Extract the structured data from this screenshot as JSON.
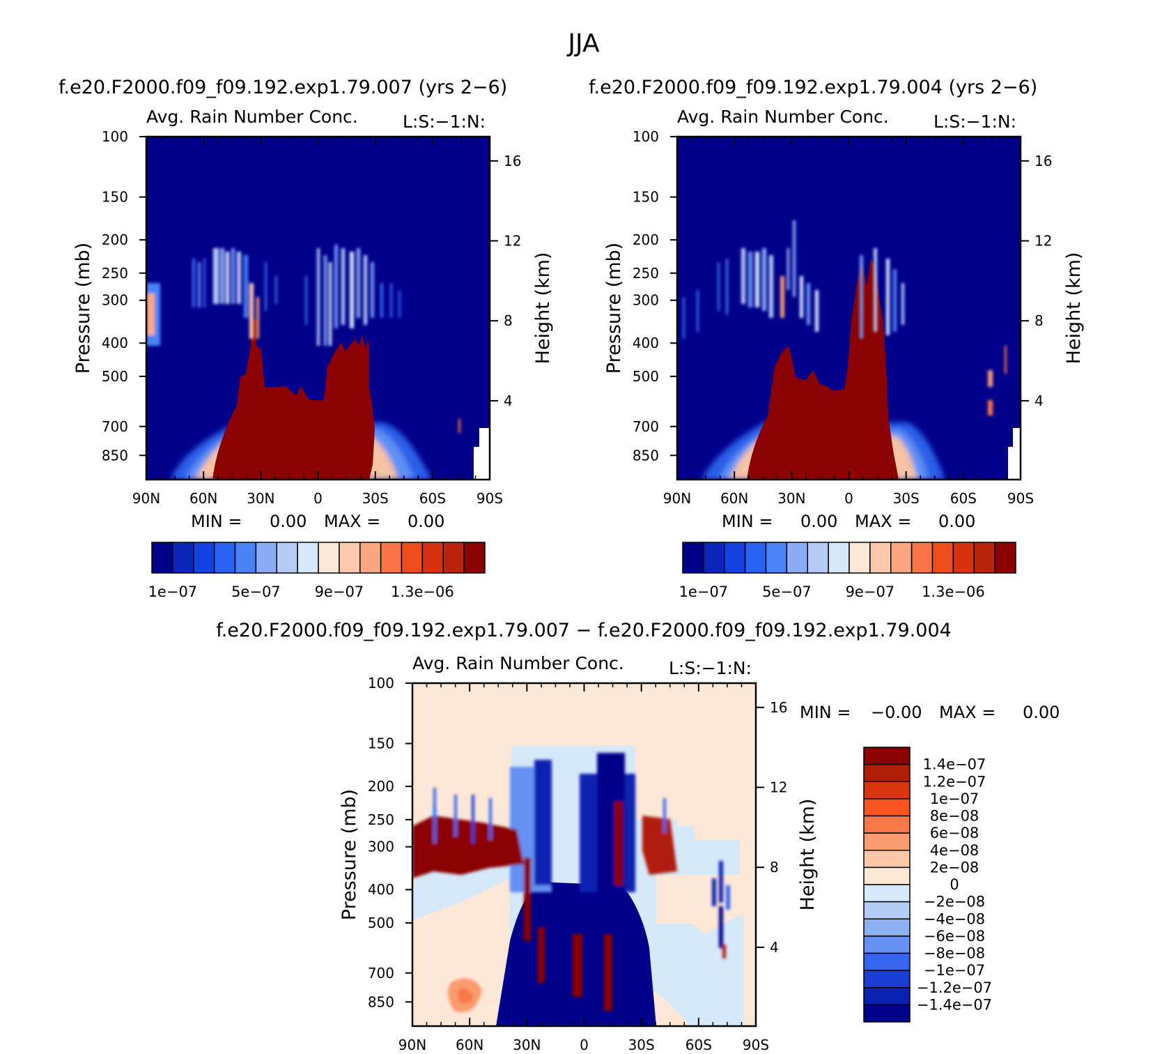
{
  "page": {
    "season": "JJA",
    "case_a_title": "f.e20.F2000.f09_f09.192.exp1.79.007 (yrs 2−6)",
    "case_b_title": "f.e20.F2000.f09_f09.192.exp1.79.004 (yrs 2−6)",
    "diff_title": "f.e20.F2000.f09_f09.192.exp1.79.007 − f.e20.F2000.f09_f09.192.exp1.79.004"
  },
  "chart_data": [
    {
      "id": "panel_a",
      "type": "heatmap",
      "title": "Avg. Rain Number Conc.",
      "subtitle": "L:S:−1:N:",
      "xlabel": "",
      "ylabel": "Pressure (mb)",
      "y2label": "Height (km)",
      "x_ticks": [
        "90N",
        "60N",
        "30N",
        "0",
        "30S",
        "60S",
        "90S"
      ],
      "y_ticks": [
        100,
        150,
        200,
        250,
        300,
        400,
        500,
        700,
        850
      ],
      "y2_ticks": [
        16,
        12,
        8,
        4
      ],
      "min_label": "MIN =",
      "min_value": "0.00",
      "max_label": "MAX =",
      "max_value": "0.00",
      "colorbar_labels": [
        "1e−07",
        "5e−07",
        "9e−07",
        "1.3e−06"
      ],
      "colorbar_colors": [
        "#00008b",
        "#0a25b8",
        "#1541e0",
        "#2a63f3",
        "#4a82f6",
        "#8aacf5",
        "#b5cbf6",
        "#d6e7fb",
        "#fde8d8",
        "#fdc8ac",
        "#fba681",
        "#fa7448",
        "#f04d1d",
        "#d63210",
        "#b8230a",
        "#8b0000"
      ],
      "features": [
        {
          "kind": "blob",
          "color": "#8b0000",
          "note": "tropical deep convection core"
        },
        {
          "kind": "streaks",
          "color": "#4a7ff5",
          "note": "upper-level rain streaks"
        }
      ]
    },
    {
      "id": "panel_b",
      "type": "heatmap",
      "title": "Avg. Rain Number Conc.",
      "subtitle": "L:S:−1:N:",
      "xlabel": "",
      "ylabel": "Pressure (mb)",
      "y2label": "Height (km)",
      "x_ticks": [
        "90N",
        "60N",
        "30N",
        "0",
        "30S",
        "60S",
        "90S"
      ],
      "y_ticks": [
        100,
        150,
        200,
        250,
        300,
        400,
        500,
        700,
        850
      ],
      "y2_ticks": [
        16,
        12,
        8,
        4
      ],
      "min_label": "MIN =",
      "min_value": "0.00",
      "max_label": "MAX =",
      "max_value": "0.00",
      "colorbar_labels": [
        "1e−07",
        "5e−07",
        "9e−07",
        "1.3e−06"
      ],
      "colorbar_colors": [
        "#00008b",
        "#0a25b8",
        "#1541e0",
        "#2a63f3",
        "#4a82f6",
        "#8aacf5",
        "#b5cbf6",
        "#d6e7fb",
        "#fde8d8",
        "#fdc8ac",
        "#fba681",
        "#fa7448",
        "#f04d1d",
        "#d63210",
        "#b8230a",
        "#8b0000"
      ]
    },
    {
      "id": "panel_diff",
      "type": "heatmap",
      "title": "Avg. Rain Number Conc.",
      "subtitle": "L:S:−1:N:",
      "xlabel": "",
      "ylabel": "Pressure (mb)",
      "y2label": "Height (km)",
      "x_ticks": [
        "90N",
        "60N",
        "30N",
        "0",
        "30S",
        "60S",
        "90S"
      ],
      "y_ticks": [
        100,
        150,
        200,
        250,
        300,
        400,
        500,
        700,
        850
      ],
      "y2_ticks": [
        16,
        12,
        8,
        4
      ],
      "min_label": "MIN =",
      "min_value": "−0.00",
      "max_label": "MAX =",
      "max_value": "0.00",
      "colorbar_labels": [
        "1.4e−07",
        "1.2e−07",
        "1e−07",
        "8e−08",
        "6e−08",
        "4e−08",
        "2e−08",
        "0",
        "−2e−08",
        "−4e−08",
        "−6e−08",
        "−8e−08",
        "−1e−07",
        "−1.2e−07",
        "−1.4e−07"
      ],
      "colorbar_colors": [
        "#8b0000",
        "#b01e08",
        "#d83510",
        "#fb5422",
        "#f9784a",
        "#fa9b70",
        "#fcc9a8",
        "#fde8d6",
        "#d7e9fb",
        "#b4cdf6",
        "#8eaff3",
        "#6690f3",
        "#3564f0",
        "#1a3ed4",
        "#0a20b0",
        "#00008b"
      ]
    }
  ]
}
